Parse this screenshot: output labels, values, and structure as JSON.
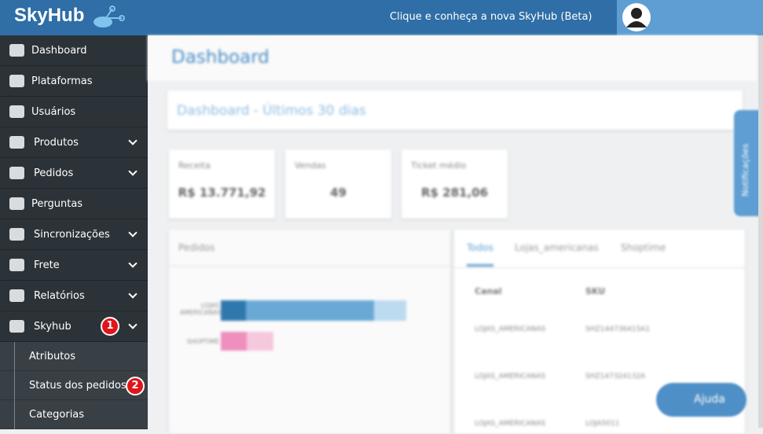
{
  "header": {
    "logo": "SkyHub",
    "banner": "Clique e conheça a nova SkyHub (Beta)"
  },
  "sidebar": {
    "items": [
      {
        "label": "Dashboard"
      },
      {
        "label": "Plataformas"
      },
      {
        "label": "Usuários"
      },
      {
        "label": "Produtos"
      },
      {
        "label": "Pedidos"
      },
      {
        "label": "Perguntas"
      },
      {
        "label": "Sincronizações"
      },
      {
        "label": "Frete"
      },
      {
        "label": "Relatórios"
      },
      {
        "label": "Skyhub"
      }
    ],
    "submenu": [
      "Atributos",
      "Status dos pedidos",
      "Categorias"
    ]
  },
  "annotations": [
    "1",
    "2"
  ],
  "main": {
    "page_title": "Dashboard",
    "panel_title": "Dashboard - Últimos 30 dias",
    "stats": [
      {
        "label": "Receita",
        "value": "R$ 13.771,92"
      },
      {
        "label": "Vendas",
        "value": "49"
      },
      {
        "label": "Ticket médio",
        "value": "R$ 281,06"
      }
    ],
    "chart_title": "Pedidos",
    "chart_labels": [
      "LOJAS AMERICANAS",
      "SHOPTIME"
    ],
    "tabs": [
      "Todos",
      "Lojas_americanas",
      "Shoptime"
    ],
    "table": {
      "header": [
        "Canal",
        "SKU"
      ],
      "rows": [
        [
          "LOJAS_AMERICANAS",
          "SHZ144736415A1"
        ],
        [
          "LOJAS_AMERICANAS",
          "SHZ147324132A"
        ],
        [
          "LOJAS_AMERICANAS",
          "LOJA5011"
        ]
      ]
    },
    "side_tab": "Notificações",
    "help": "Ajuda"
  }
}
